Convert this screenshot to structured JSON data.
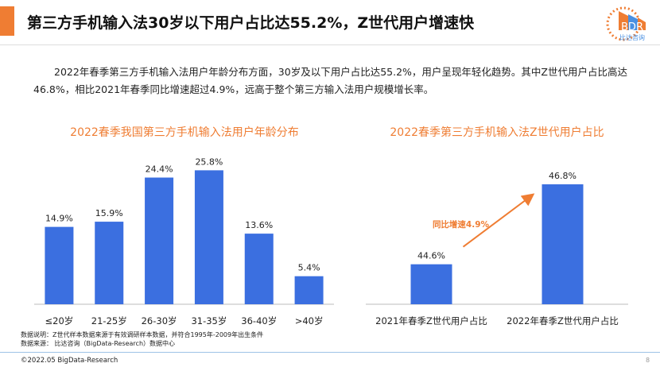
{
  "header": {
    "title": "第三方手机输入法30岁以下用户占比达55.2%，Z世代用户增速快",
    "logo_text": "BDR",
    "logo_subtext": "比达咨询"
  },
  "summary": "2022年春季第三方手机输入法用户年龄分布方面，30岁及以下用户占比达55.2%，用户呈现年轻化趋势。其中Z世代用户占比高达46.8%，相比2021年春季同比增速超过4.9%，远高于整个第三方输入法用户规模增长率。",
  "chart_data": [
    {
      "type": "bar",
      "title": "2022春季我国第三方手机输入法用户年龄分布",
      "categories": [
        "≤20岁",
        "21-25岁",
        "26-30岁",
        "31-35岁",
        "36-40岁",
        ">40岁"
      ],
      "values": [
        14.9,
        15.9,
        24.4,
        25.8,
        13.6,
        5.4
      ],
      "value_labels": [
        "14.9%",
        "15.9%",
        "24.4%",
        "25.8%",
        "13.6%",
        "5.4%"
      ],
      "ylim": [
        0,
        28
      ],
      "grid": false,
      "color": "#3b6fe0"
    },
    {
      "type": "bar",
      "title": "2022春季第三方手机输入法Z世代用户占比",
      "categories": [
        "2021年春季Z世代用户占比",
        "2022年春季Z世代用户占比"
      ],
      "values": [
        44.6,
        46.8
      ],
      "value_labels": [
        "44.6%",
        "46.8%"
      ],
      "ylim": [
        43.5,
        47.5
      ],
      "grid": false,
      "color": "#3b6fe0",
      "annotation": "同比增速4.9%",
      "annotation_color": "#ef7d33"
    }
  ],
  "notes": [
    "数据说明：Z世代样本数据来源于有效调研样本数据，并符合1995年-2009年出生条件",
    "数据来源： 比达咨询（BigData-Research）数据中心"
  ],
  "footer": {
    "copyright": "©2022.05 BigData-Research",
    "page": "8"
  }
}
